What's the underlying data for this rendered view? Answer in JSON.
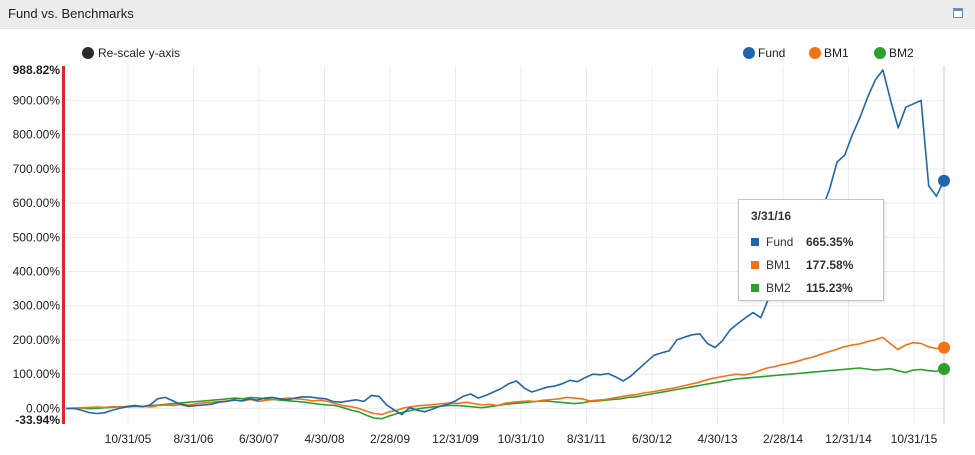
{
  "panel": {
    "title": "Fund vs. Benchmarks"
  },
  "controls": {
    "rescale_label": "Re-scale y-axis",
    "rescale_color": "#2b2b2b"
  },
  "chart_data": {
    "type": "line",
    "title": "Fund vs. Benchmarks",
    "ylim": [
      -33.94,
      988.82
    ],
    "yaxis_labels": [
      "988.82%",
      "900.00%",
      "800.00%",
      "700.00%",
      "600.00%",
      "500.00%",
      "400.00%",
      "300.00%",
      "200.00%",
      "100.00%",
      "0.00%",
      "-33.94%"
    ],
    "yaxis_values": [
      988.82,
      900,
      800,
      700,
      600,
      500,
      400,
      300,
      200,
      100,
      0,
      -33.94
    ],
    "xaxis_labels": [
      "10/31/05",
      "8/31/06",
      "6/30/07",
      "4/30/08",
      "2/28/09",
      "12/31/09",
      "10/31/10",
      "8/31/11",
      "6/30/12",
      "4/30/13",
      "2/28/14",
      "12/31/14",
      "10/31/15"
    ],
    "grid": true,
    "legend_position": "top-right",
    "series": [
      {
        "name": "Fund",
        "color": "#2166ac",
        "values": [
          0,
          0,
          -5,
          -12,
          -15,
          -13,
          -6,
          0,
          5,
          8,
          5,
          10,
          28,
          32,
          22,
          12,
          6,
          8,
          10,
          12,
          18,
          20,
          25,
          22,
          28,
          24,
          30,
          32,
          28,
          25,
          30,
          34,
          33,
          30,
          28,
          20,
          18,
          22,
          25,
          20,
          38,
          35,
          10,
          -5,
          -18,
          2,
          -5,
          -10,
          -2,
          6,
          12,
          22,
          35,
          42,
          30,
          38,
          48,
          58,
          72,
          80,
          60,
          48,
          55,
          62,
          65,
          72,
          82,
          78,
          90,
          100,
          98,
          102,
          92,
          80,
          95,
          115,
          135,
          155,
          162,
          168,
          200,
          208,
          215,
          218,
          190,
          178,
          198,
          230,
          248,
          265,
          280,
          265,
          320,
          350,
          400,
          450,
          480,
          520,
          560,
          580,
          640,
          720,
          740,
          800,
          850,
          910,
          960,
          988.82,
          900,
          820,
          880,
          890,
          900,
          650,
          620,
          665.35
        ]
      },
      {
        "name": "BM1",
        "color": "#f47216",
        "values": [
          0,
          1,
          2,
          3,
          4,
          3,
          5,
          4,
          6,
          8,
          6,
          4,
          8,
          10,
          8,
          12,
          10,
          14,
          16,
          18,
          20,
          22,
          24,
          22,
          26,
          20,
          24,
          26,
          28,
          30,
          28,
          26,
          22,
          24,
          20,
          14,
          8,
          5,
          0,
          -8,
          -15,
          -18,
          -10,
          -5,
          2,
          5,
          8,
          10,
          12,
          14,
          16,
          15,
          18,
          14,
          10,
          12,
          8,
          15,
          18,
          20,
          22,
          20,
          24,
          26,
          28,
          32,
          30,
          28,
          22,
          24,
          26,
          30,
          34,
          38,
          40,
          45,
          48,
          52,
          56,
          60,
          65,
          70,
          75,
          82,
          88,
          92,
          96,
          100,
          98,
          102,
          110,
          118,
          122,
          128,
          132,
          138,
          145,
          150,
          158,
          165,
          172,
          180,
          185,
          188,
          195,
          200,
          208,
          190,
          172,
          185,
          192,
          190,
          180,
          175,
          177.58
        ]
      },
      {
        "name": "BM2",
        "color": "#2ca02c",
        "values": [
          0,
          0,
          1,
          -1,
          0,
          2,
          3,
          5,
          4,
          6,
          5,
          8,
          10,
          12,
          14,
          16,
          18,
          20,
          22,
          24,
          26,
          28,
          30,
          28,
          32,
          30,
          28,
          26,
          24,
          22,
          20,
          18,
          15,
          12,
          10,
          8,
          2,
          -5,
          -10,
          -20,
          -28,
          -30,
          -22,
          -15,
          -10,
          -5,
          0,
          3,
          5,
          7,
          9,
          8,
          6,
          4,
          2,
          5,
          8,
          12,
          14,
          16,
          18,
          20,
          22,
          20,
          18,
          16,
          14,
          16,
          20,
          22,
          24,
          26,
          28,
          32,
          34,
          38,
          42,
          46,
          50,
          54,
          58,
          62,
          66,
          70,
          74,
          78,
          82,
          86,
          88,
          90,
          92,
          94,
          96,
          98,
          100,
          102,
          104,
          106,
          108,
          110,
          112,
          114,
          116,
          118,
          115,
          112,
          114,
          116,
          110,
          105,
          112,
          114,
          110,
          108,
          115.23
        ]
      }
    ],
    "tooltip": {
      "date": "3/31/16",
      "rows": [
        {
          "name": "Fund",
          "value": "665.35%"
        },
        {
          "name": "BM1",
          "value": "177.58%"
        },
        {
          "name": "BM2",
          "value": "115.23%"
        }
      ]
    }
  }
}
